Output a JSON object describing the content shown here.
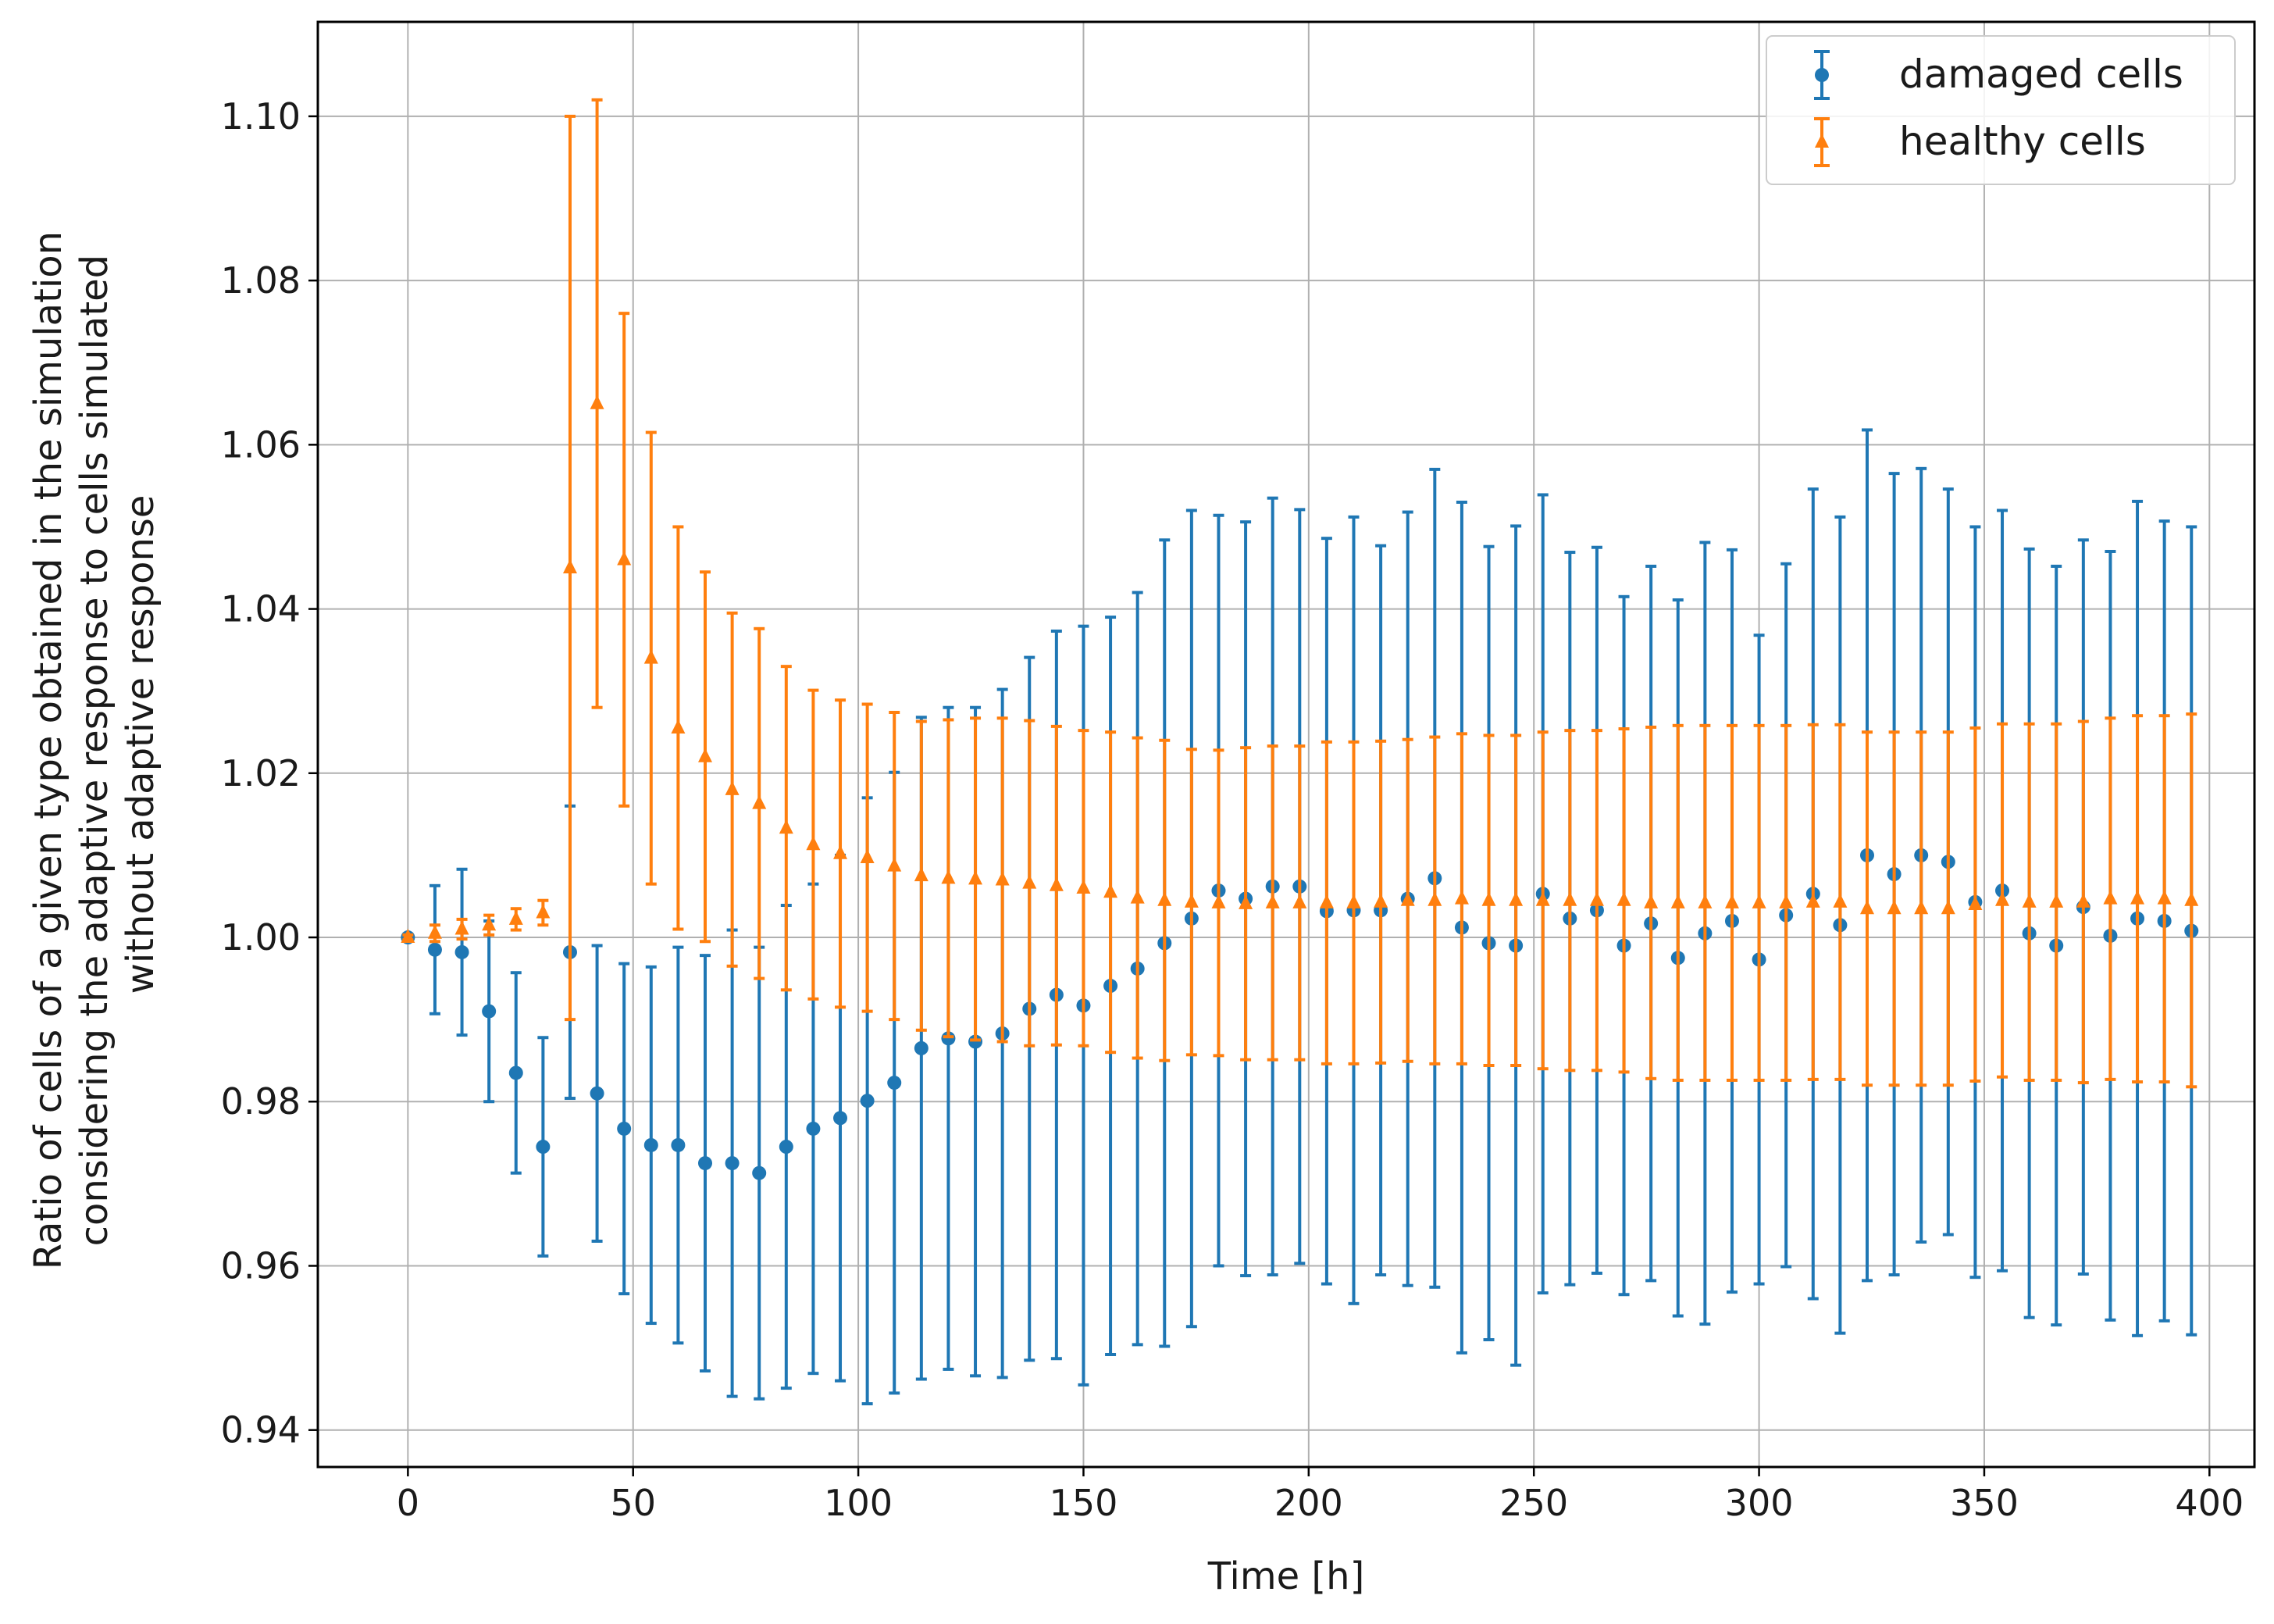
{
  "chart_data": {
    "type": "scatter",
    "title": "",
    "xlabel": "Time [h]",
    "ylabel_lines": [
      "Ratio of cells of a given type obtained in the simulation",
      "considering the adaptive response to cells simulated",
      "without adaptive response"
    ],
    "xlim": [
      -20,
      410
    ],
    "ylim": [
      0.9355,
      1.1115
    ],
    "xticks": [
      0,
      50,
      100,
      150,
      200,
      250,
      300,
      350,
      400
    ],
    "yticks": [
      0.94,
      0.96,
      0.98,
      1.0,
      1.02,
      1.04,
      1.06,
      1.08,
      1.1
    ],
    "ytick_labels": [
      "0.94",
      "0.96",
      "0.98",
      "1.00",
      "1.02",
      "1.04",
      "1.06",
      "1.08",
      "1.10"
    ],
    "grid": true,
    "legend_position": "top-right",
    "series": [
      {
        "name": "damaged cells",
        "marker": "circle",
        "color": "#1f77b4",
        "x": [
          0,
          6,
          12,
          18,
          24,
          30,
          36,
          42,
          48,
          54,
          60,
          66,
          72,
          78,
          84,
          90,
          96,
          102,
          108,
          114,
          120,
          126,
          132,
          138,
          144,
          150,
          156,
          162,
          168,
          174,
          180,
          186,
          192,
          198,
          204,
          210,
          216,
          222,
          228,
          234,
          240,
          246,
          252,
          258,
          264,
          270,
          276,
          282,
          288,
          294,
          300,
          306,
          312,
          318,
          324,
          330,
          336,
          342,
          348,
          354,
          360,
          366,
          372,
          378,
          384,
          390,
          396
        ],
        "y": [
          1.0,
          0.9985,
          0.9982,
          0.991,
          0.9835,
          0.9745,
          0.9982,
          0.981,
          0.9767,
          0.9747,
          0.9747,
          0.9725,
          0.9725,
          0.9713,
          0.9745,
          0.9767,
          0.978,
          0.9801,
          0.9823,
          0.9865,
          0.9877,
          0.9873,
          0.9883,
          0.9913,
          0.993,
          0.9917,
          0.9941,
          0.9962,
          0.9993,
          1.0023,
          1.0057,
          1.0047,
          1.0062,
          1.0062,
          1.0032,
          1.0033,
          1.0033,
          1.0047,
          1.0072,
          1.0012,
          0.9993,
          0.999,
          1.0053,
          1.0023,
          1.0033,
          0.999,
          1.0017,
          0.9975,
          1.0005,
          1.002,
          0.9973,
          1.0027,
          1.0053,
          1.0015,
          1.01,
          1.0077,
          1.01,
          1.0092,
          1.0043,
          1.0057,
          1.0005,
          0.999,
          1.0037,
          1.0002,
          1.0023,
          1.002,
          1.0008
        ],
        "err": [
          0.0003,
          0.0078,
          0.0101,
          0.011,
          0.0122,
          0.0133,
          0.0178,
          0.018,
          0.0201,
          0.0217,
          0.0241,
          0.0253,
          0.0284,
          0.0275,
          0.0294,
          0.0298,
          0.032,
          0.0369,
          0.0378,
          0.0403,
          0.0403,
          0.0407,
          0.0419,
          0.0428,
          0.0443,
          0.0462,
          0.0449,
          0.0458,
          0.0491,
          0.0497,
          0.0457,
          0.0459,
          0.0473,
          0.0459,
          0.0454,
          0.0479,
          0.0444,
          0.0471,
          0.0498,
          0.0518,
          0.0483,
          0.0511,
          0.0486,
          0.0446,
          0.0442,
          0.0425,
          0.0435,
          0.0436,
          0.0476,
          0.0452,
          0.0395,
          0.0428,
          0.0493,
          0.0497,
          0.0518,
          0.0488,
          0.0471,
          0.0454,
          0.0457,
          0.0463,
          0.0468,
          0.0462,
          0.0447,
          0.0468,
          0.0508,
          0.0487,
          0.0492
        ]
      },
      {
        "name": "healthy cells",
        "marker": "triangle",
        "color": "#ff7f0e",
        "x": [
          0,
          6,
          12,
          18,
          24,
          30,
          36,
          42,
          48,
          54,
          60,
          66,
          72,
          78,
          84,
          90,
          96,
          102,
          108,
          114,
          120,
          126,
          132,
          138,
          144,
          150,
          156,
          162,
          168,
          174,
          180,
          186,
          192,
          198,
          204,
          210,
          216,
          222,
          228,
          234,
          240,
          246,
          252,
          258,
          264,
          270,
          276,
          282,
          288,
          294,
          300,
          306,
          312,
          318,
          324,
          330,
          336,
          342,
          348,
          354,
          360,
          366,
          372,
          378,
          384,
          390,
          396
        ],
        "y": [
          1.0,
          1.0005,
          1.001,
          1.0015,
          1.0022,
          1.003,
          1.045,
          1.065,
          1.046,
          1.034,
          1.0255,
          1.022,
          1.018,
          1.0163,
          1.0133,
          1.0113,
          1.0102,
          1.0097,
          1.0087,
          1.0075,
          1.0072,
          1.0071,
          1.007,
          1.0066,
          1.0063,
          1.006,
          1.0055,
          1.0048,
          1.0045,
          1.0043,
          1.0042,
          1.0041,
          1.0042,
          1.0042,
          1.0042,
          1.0042,
          1.0043,
          1.0045,
          1.0045,
          1.0047,
          1.0045,
          1.0045,
          1.0045,
          1.0045,
          1.0045,
          1.0045,
          1.0042,
          1.0042,
          1.0042,
          1.0042,
          1.0042,
          1.0042,
          1.0043,
          1.0043,
          1.0035,
          1.0035,
          1.0035,
          1.0035,
          1.004,
          1.0045,
          1.0043,
          1.0043,
          1.0043,
          1.0047,
          1.0047,
          1.0047,
          1.0045
        ],
        "err": [
          0.0003,
          0.001,
          0.0012,
          0.0012,
          0.0013,
          0.0015,
          0.055,
          0.037,
          0.03,
          0.0275,
          0.0245,
          0.0225,
          0.0215,
          0.0213,
          0.0197,
          0.0188,
          0.0187,
          0.0187,
          0.0187,
          0.0188,
          0.0193,
          0.0196,
          0.0197,
          0.0198,
          0.0194,
          0.0192,
          0.0195,
          0.0195,
          0.0195,
          0.0186,
          0.0186,
          0.019,
          0.0191,
          0.0191,
          0.0196,
          0.0196,
          0.0196,
          0.0196,
          0.0199,
          0.0201,
          0.0201,
          0.0201,
          0.0205,
          0.0207,
          0.0207,
          0.0209,
          0.0214,
          0.0216,
          0.0216,
          0.0216,
          0.0216,
          0.0216,
          0.0216,
          0.0216,
          0.0215,
          0.0215,
          0.0215,
          0.0215,
          0.0215,
          0.0215,
          0.0217,
          0.0217,
          0.022,
          0.022,
          0.0223,
          0.0223,
          0.0227
        ]
      }
    ]
  }
}
